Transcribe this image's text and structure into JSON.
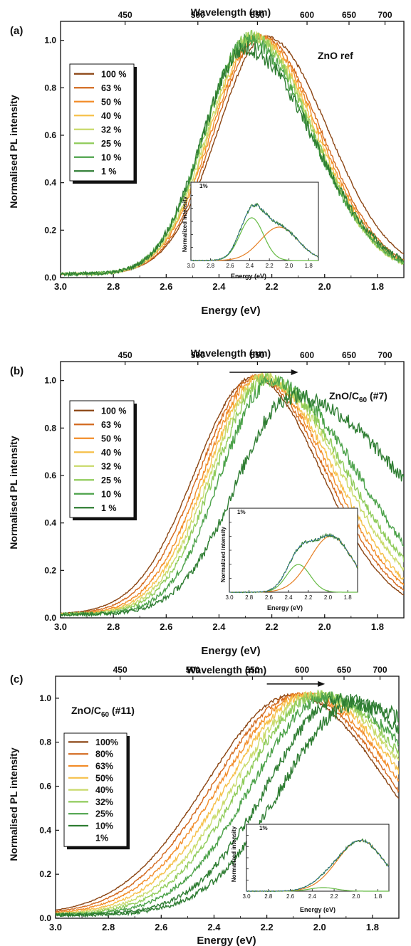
{
  "series_colors": [
    "#8B4513",
    "#D2691E",
    "#F28C28",
    "#F6C04A",
    "#C9DA6A",
    "#8FCB5A",
    "#4CA24A",
    "#2E7D32"
  ],
  "fit_colors": {
    "measured": "#2E7D32",
    "fit_sum": "#3A6FB0",
    "component_low": "#E67E22",
    "component_high": "#66BB44"
  },
  "chart_data": [
    {
      "type": "line",
      "panel_label": "(a)",
      "sample_label": "ZnO ref",
      "sample_sub": "",
      "sample_suffix": "",
      "xlabel": "Energy (eV)",
      "ylabel": "Normalised PL intensity",
      "top_axis_label": "Wavelength (nm)",
      "x_ticks": [
        "3.0",
        "2.8",
        "2.6",
        "2.4",
        "2.2",
        "2.0",
        "1.8"
      ],
      "y_ticks": [
        "0.0",
        "0.2",
        "0.4",
        "0.6",
        "0.8",
        "1.0"
      ],
      "top_ticks": [
        "450",
        "500",
        "550",
        "600",
        "650",
        "700"
      ],
      "xlim": [
        3.0,
        1.7
      ],
      "ylim": [
        0,
        1.08
      ],
      "arrow": null,
      "series": [
        {
          "name": "100 %",
          "peak": 2.22,
          "width_hi": 0.26,
          "width_lo": 0.33,
          "scale": 1.0
        },
        {
          "name": "63 %",
          "peak": 2.24,
          "width_hi": 0.25,
          "width_lo": 0.32,
          "scale": 1.0
        },
        {
          "name": "50 %",
          "peak": 2.25,
          "width_hi": 0.25,
          "width_lo": 0.32,
          "scale": 1.0
        },
        {
          "name": "40 %",
          "peak": 2.26,
          "width_hi": 0.245,
          "width_lo": 0.32,
          "scale": 1.0
        },
        {
          "name": "32 %",
          "peak": 2.27,
          "width_hi": 0.24,
          "width_lo": 0.32,
          "scale": 1.0
        },
        {
          "name": "25 %",
          "peak": 2.28,
          "width_hi": 0.24,
          "width_lo": 0.33,
          "scale": 1.0
        },
        {
          "name": "10 %",
          "peak": 2.29,
          "width_hi": 0.235,
          "width_lo": 0.34,
          "scale": 0.98
        },
        {
          "name": "1 %",
          "peak": 2.3,
          "width_hi": 0.23,
          "width_lo": 0.36,
          "scale": 0.95
        }
      ],
      "inset": {
        "label": "1%",
        "xlabel": "Energy (eV)",
        "ylabel": "Normalized intensity",
        "x_ticks": [
          "3.0",
          "2.8",
          "2.6",
          "2.4",
          "2.2",
          "2.0",
          "1.8"
        ],
        "xlim": [
          3.0,
          1.7
        ],
        "components": [
          {
            "center": 2.38,
            "width": 0.17,
            "amp": 0.6
          },
          {
            "center": 2.1,
            "width": 0.27,
            "amp": 0.47
          }
        ]
      }
    },
    {
      "type": "line",
      "panel_label": "(b)",
      "sample_label": "ZnO/C",
      "sample_sub": "60",
      "sample_suffix": " (#7)",
      "xlabel": "Energy (eV)",
      "ylabel": "Normalised PL intensity",
      "top_axis_label": "Wavelength (nm)",
      "x_ticks": [
        "3.0",
        "2.8",
        "2.6",
        "2.4",
        "2.2",
        "2.0",
        "1.8"
      ],
      "y_ticks": [
        "0.0",
        "0.2",
        "0.4",
        "0.6",
        "0.8",
        "1.0"
      ],
      "top_ticks": [
        "450",
        "500",
        "550",
        "600",
        "650",
        "700"
      ],
      "xlim": [
        3.0,
        1.7
      ],
      "ylim": [
        0,
        1.08
      ],
      "arrow": {
        "from": 2.36,
        "to": 2.1,
        "y": 1.035
      },
      "series": [
        {
          "name": "100 %",
          "peak": 2.27,
          "width_hi": 0.31,
          "width_lo": 0.36,
          "scale": 1.0
        },
        {
          "name": "63 %",
          "peak": 2.26,
          "width_hi": 0.3,
          "width_lo": 0.37,
          "scale": 1.0
        },
        {
          "name": "50 %",
          "peak": 2.25,
          "width_hi": 0.29,
          "width_lo": 0.38,
          "scale": 1.0
        },
        {
          "name": "40 %",
          "peak": 2.24,
          "width_hi": 0.285,
          "width_lo": 0.39,
          "scale": 1.0
        },
        {
          "name": "32 %",
          "peak": 2.23,
          "width_hi": 0.28,
          "width_lo": 0.41,
          "scale": 1.0
        },
        {
          "name": "25 %",
          "peak": 2.22,
          "width_hi": 0.275,
          "width_lo": 0.43,
          "scale": 0.99
        },
        {
          "name": "10 %",
          "peak": 2.2,
          "width_hi": 0.27,
          "width_lo": 0.46,
          "scale": 0.98
        },
        {
          "name": "1 %",
          "peak": 2.12,
          "width_hi": 0.3,
          "width_lo": 0.6,
          "scale": 0.92
        }
      ],
      "inset": {
        "label": "1%",
        "xlabel": "Energy (eV)",
        "ylabel": "Normalized intensity",
        "x_ticks": [
          "3.0",
          "2.8",
          "2.6",
          "2.4",
          "2.2",
          "2.0",
          "1.8"
        ],
        "xlim": [
          3.0,
          1.7
        ],
        "components": [
          {
            "center": 2.3,
            "width": 0.17,
            "amp": 0.36
          },
          {
            "center": 1.97,
            "width": 0.3,
            "amp": 0.73
          }
        ]
      }
    },
    {
      "type": "line",
      "panel_label": "(c)",
      "sample_label": "ZnO/C",
      "sample_sub": "60",
      "sample_suffix": " (#11)",
      "xlabel": "Energy (eV)",
      "ylabel": "Normalised PL intensity",
      "top_axis_label": "Wavelength (nm)",
      "x_ticks": [
        "3.0",
        "2.8",
        "2.6",
        "2.4",
        "2.2",
        "2.0",
        "1.8"
      ],
      "y_ticks": [
        "0.0",
        "0.2",
        "0.4",
        "0.6",
        "0.8",
        "1.0"
      ],
      "top_ticks": [
        "450",
        "500",
        "550",
        "600",
        "650",
        "700"
      ],
      "xlim": [
        3.0,
        1.7
      ],
      "ylim": [
        0,
        1.1
      ],
      "arrow": {
        "from": 2.2,
        "to": 1.98,
        "y": 1.065
      },
      "series": [
        {
          "name": "100%",
          "peak": 2.1,
          "width_hi": 0.46,
          "width_lo": 0.5,
          "scale": 1.0
        },
        {
          "name": "80%",
          "peak": 2.08,
          "width_hi": 0.45,
          "width_lo": 0.5,
          "scale": 1.0
        },
        {
          "name": "63%",
          "peak": 2.06,
          "width_hi": 0.44,
          "width_lo": 0.51,
          "scale": 1.0
        },
        {
          "name": "50%",
          "peak": 2.04,
          "width_hi": 0.43,
          "width_lo": 0.52,
          "scale": 1.0
        },
        {
          "name": "40%",
          "peak": 2.02,
          "width_hi": 0.42,
          "width_lo": 0.53,
          "scale": 1.0
        },
        {
          "name": "32%",
          "peak": 2.0,
          "width_hi": 0.41,
          "width_lo": 0.54,
          "scale": 1.0
        },
        {
          "name": "25%",
          "peak": 1.97,
          "width_hi": 0.4,
          "width_lo": 0.55,
          "scale": 0.99
        },
        {
          "name": "10%",
          "peak": 1.92,
          "width_hi": 0.39,
          "width_lo": 0.57,
          "scale": 0.98
        },
        {
          "name": "1%",
          "peak": 1.86,
          "width_hi": 0.4,
          "width_lo": 0.6,
          "scale": 0.96
        }
      ],
      "inset": {
        "label": "1%",
        "xlabel": "Energy (eV)",
        "ylabel": "Normalized intensity",
        "x_ticks": [
          "3.0",
          "2.8",
          "2.6",
          "2.4",
          "2.2",
          "2.0",
          "1.8"
        ],
        "xlim": [
          3.0,
          1.7
        ],
        "components": [
          {
            "center": 2.3,
            "width": 0.17,
            "amp": 0.06
          },
          {
            "center": 1.96,
            "width": 0.3,
            "amp": 0.85
          }
        ]
      }
    }
  ]
}
